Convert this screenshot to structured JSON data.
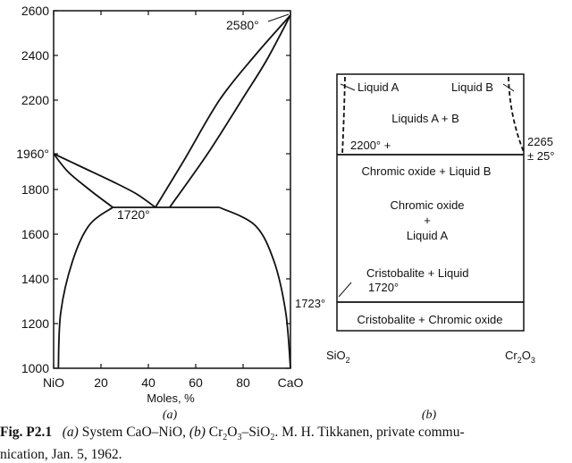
{
  "chart_data": [
    {
      "type": "phase-diagram",
      "panel_label": "(a)",
      "xlabel": "Moles, %",
      "x_tick_labels": [
        "NiO",
        "20",
        "40",
        "60",
        "80",
        "CaO"
      ],
      "x_ticks": [
        0,
        20,
        40,
        60,
        80,
        100
      ],
      "y_tick_labels": [
        "1000",
        "1200",
        "1400",
        "1600",
        "1800",
        "1960°",
        "2200",
        "2400",
        "2600"
      ],
      "y_ticks": [
        1000,
        1200,
        1400,
        1600,
        1800,
        1960,
        2200,
        2400,
        2600
      ],
      "xlim": [
        0,
        100
      ],
      "ylim": [
        1000,
        2600
      ],
      "annotations": [
        {
          "text": "2580°",
          "x": 100,
          "y": 2580
        },
        {
          "text": "1720°",
          "x": 43,
          "y": 1720
        }
      ],
      "curves": {
        "liquidus_left": [
          [
            0,
            1960
          ],
          [
            12,
            1900
          ],
          [
            25,
            1835
          ],
          [
            35,
            1780
          ],
          [
            43,
            1720
          ]
        ],
        "solidus_left": [
          [
            0,
            1960
          ],
          [
            6,
            1880
          ],
          [
            15,
            1800
          ],
          [
            25,
            1720
          ]
        ],
        "liquidus_right": [
          [
            43,
            1720
          ],
          [
            55,
            1930
          ],
          [
            70,
            2200
          ],
          [
            85,
            2400
          ],
          [
            100,
            2580
          ]
        ],
        "solidus_right": [
          [
            49,
            1720
          ],
          [
            65,
            1960
          ],
          [
            80,
            2210
          ],
          [
            90,
            2380
          ],
          [
            100,
            2580
          ]
        ],
        "eutectic_line": [
          [
            25,
            1720
          ],
          [
            70,
            1720
          ]
        ],
        "solvus_left": [
          [
            25,
            1720
          ],
          [
            15,
            1640
          ],
          [
            8,
            1480
          ],
          [
            3,
            1250
          ],
          [
            2,
            1000
          ]
        ],
        "solvus_right": [
          [
            70,
            1720
          ],
          [
            85,
            1640
          ],
          [
            93,
            1480
          ],
          [
            98,
            1250
          ],
          [
            100,
            1000
          ]
        ]
      }
    },
    {
      "type": "phase-diagram-schematic",
      "panel_label": "(b)",
      "x_end_labels": [
        "SiO2",
        "Cr2O3"
      ],
      "temperature_labels": [
        "2200° +",
        "2265\n± 25°",
        "1723°",
        "1720°"
      ],
      "regions": [
        "Liquid A",
        "Liquid B",
        "Liquids A + B",
        "Chromic oxide + Liquid B",
        "Chromic oxide\n+\nLiquid A",
        "Cristobalite + Liquid",
        "Cristobalite + Chromic oxide"
      ]
    }
  ],
  "caption": {
    "fig_label": "Fig. P2.1",
    "part_a_label": "(a)",
    "part_a_text": " System CaO–NiO, ",
    "part_b_label": "(b)",
    "part_b_text": " Cr2O3–SiO2. M. H. Tikkanen, private commu-",
    "line2": "nication, Jan. 5, 1962."
  },
  "colors": {
    "ink": "#111111",
    "background": "#ffffff"
  }
}
